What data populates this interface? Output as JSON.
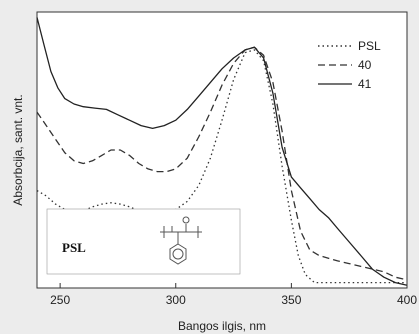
{
  "chart_data": {
    "type": "line",
    "title": "",
    "xlabel": "Bangos ilgis, nm",
    "ylabel": "Absorbcija, sant. vnt.",
    "xlim": [
      240,
      400
    ],
    "ylim": [
      0,
      1.02
    ],
    "x_ticks": [
      250,
      300,
      350,
      400
    ],
    "grid": false,
    "legend": {
      "position": "top-right"
    },
    "series": [
      {
        "name": "PSL",
        "style": "dotted",
        "color": "#333333",
        "points": [
          [
            240,
            0.36
          ],
          [
            244,
            0.34
          ],
          [
            248,
            0.31
          ],
          [
            252,
            0.29
          ],
          [
            256,
            0.28
          ],
          [
            260,
            0.285
          ],
          [
            264,
            0.3
          ],
          [
            268,
            0.31
          ],
          [
            272,
            0.315
          ],
          [
            276,
            0.31
          ],
          [
            280,
            0.3
          ],
          [
            284,
            0.285
          ],
          [
            288,
            0.275
          ],
          [
            292,
            0.27
          ],
          [
            296,
            0.275
          ],
          [
            300,
            0.29
          ],
          [
            305,
            0.32
          ],
          [
            310,
            0.38
          ],
          [
            315,
            0.48
          ],
          [
            320,
            0.62
          ],
          [
            325,
            0.77
          ],
          [
            330,
            0.87
          ],
          [
            334,
            0.88
          ],
          [
            338,
            0.84
          ],
          [
            342,
            0.68
          ],
          [
            346,
            0.45
          ],
          [
            350,
            0.25
          ],
          [
            353,
            0.12
          ],
          [
            356,
            0.05
          ],
          [
            360,
            0.02
          ],
          [
            370,
            0.02
          ],
          [
            380,
            0.02
          ],
          [
            390,
            0.02
          ],
          [
            400,
            0.02
          ]
        ]
      },
      {
        "name": "40",
        "style": "dashed",
        "color": "#333333",
        "points": [
          [
            240,
            0.65
          ],
          [
            244,
            0.6
          ],
          [
            248,
            0.55
          ],
          [
            252,
            0.5
          ],
          [
            256,
            0.47
          ],
          [
            260,
            0.46
          ],
          [
            264,
            0.47
          ],
          [
            268,
            0.49
          ],
          [
            272,
            0.51
          ],
          [
            276,
            0.51
          ],
          [
            280,
            0.49
          ],
          [
            284,
            0.46
          ],
          [
            288,
            0.44
          ],
          [
            292,
            0.43
          ],
          [
            296,
            0.43
          ],
          [
            300,
            0.44
          ],
          [
            305,
            0.48
          ],
          [
            310,
            0.56
          ],
          [
            315,
            0.65
          ],
          [
            320,
            0.75
          ],
          [
            325,
            0.83
          ],
          [
            330,
            0.88
          ],
          [
            334,
            0.89
          ],
          [
            338,
            0.86
          ],
          [
            342,
            0.76
          ],
          [
            346,
            0.58
          ],
          [
            350,
            0.36
          ],
          [
            354,
            0.21
          ],
          [
            358,
            0.14
          ],
          [
            362,
            0.12
          ],
          [
            366,
            0.11
          ],
          [
            370,
            0.1
          ],
          [
            375,
            0.09
          ],
          [
            380,
            0.08
          ],
          [
            385,
            0.07
          ],
          [
            390,
            0.06
          ],
          [
            395,
            0.04
          ],
          [
            400,
            0.03
          ]
        ]
      },
      {
        "name": "41",
        "style": "solid",
        "color": "#222222",
        "points": [
          [
            240,
            1.0
          ],
          [
            243,
            0.9
          ],
          [
            246,
            0.8
          ],
          [
            249,
            0.74
          ],
          [
            252,
            0.7
          ],
          [
            256,
            0.68
          ],
          [
            260,
            0.67
          ],
          [
            265,
            0.665
          ],
          [
            270,
            0.66
          ],
          [
            275,
            0.64
          ],
          [
            280,
            0.62
          ],
          [
            285,
            0.6
          ],
          [
            290,
            0.59
          ],
          [
            295,
            0.6
          ],
          [
            300,
            0.62
          ],
          [
            305,
            0.66
          ],
          [
            310,
            0.71
          ],
          [
            315,
            0.76
          ],
          [
            320,
            0.81
          ],
          [
            325,
            0.85
          ],
          [
            330,
            0.88
          ],
          [
            334,
            0.89
          ],
          [
            338,
            0.85
          ],
          [
            342,
            0.72
          ],
          [
            346,
            0.52
          ],
          [
            350,
            0.41
          ],
          [
            354,
            0.37
          ],
          [
            358,
            0.33
          ],
          [
            362,
            0.29
          ],
          [
            366,
            0.26
          ],
          [
            370,
            0.22
          ],
          [
            375,
            0.17
          ],
          [
            380,
            0.12
          ],
          [
            385,
            0.07
          ],
          [
            390,
            0.04
          ],
          [
            395,
            0.02
          ],
          [
            400,
            0.01
          ]
        ]
      }
    ],
    "inset": {
      "label": "PSL",
      "structure": "polystyrene repeat unit (chemical structure drawing)"
    }
  }
}
